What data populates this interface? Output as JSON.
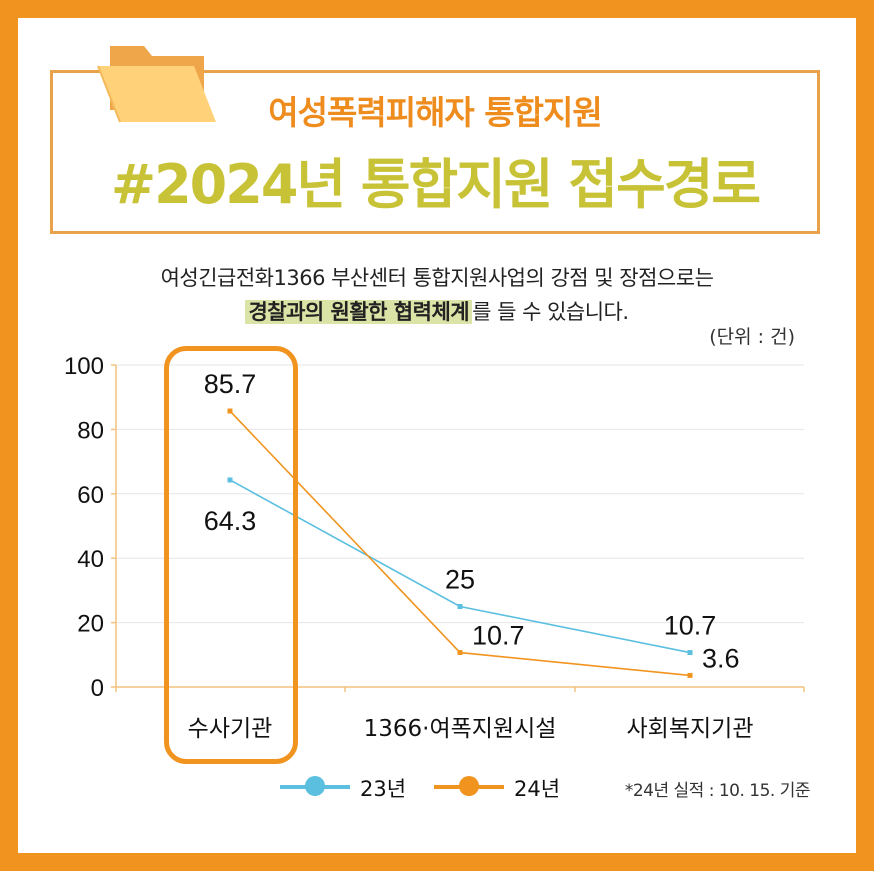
{
  "header": {
    "subtitle": "여성폭력피해자 통합지원",
    "title": "#2024년 통합지원 접수경로"
  },
  "description": {
    "line1": "여성긴급전화1366 부산센터 통합지원사업의 강점 및 장점으로는",
    "line2_highlight": "경찰과의 원활한 협력체계",
    "line2_rest": "를 들 수 있습니다."
  },
  "unit_label": "(단위 : 건)",
  "note": "*24년 실적 : 10. 15. 기준",
  "colors": {
    "frame": "#F0941F",
    "subtitle": "#EE8C1E",
    "title": "#C8C236",
    "series_23": "#5BC0E0",
    "series_24": "#F0941F",
    "highlight_bg": "#DCE3A6"
  },
  "icons": {
    "folder": "folder-icon"
  },
  "chart_data": {
    "type": "line",
    "categories": [
      "수사기관",
      "1366·여폭지원시설",
      "사회복지기관"
    ],
    "series": [
      {
        "name": "23년",
        "values": [
          64.3,
          25,
          10.7
        ],
        "color": "#5BC0E0"
      },
      {
        "name": "24년",
        "values": [
          85.7,
          10.7,
          3.6
        ],
        "color": "#F0941F"
      }
    ],
    "yticks": [
      "0",
      "20",
      "40",
      "60",
      "80",
      "100"
    ],
    "ylim": [
      0,
      100
    ],
    "grid": true,
    "legend": "bottom",
    "highlighted_category": "수사기관",
    "data_labels": [
      {
        "series": "24년",
        "category": "수사기관",
        "text": "85.7",
        "pos": "above"
      },
      {
        "series": "23년",
        "category": "수사기관",
        "text": "64.3",
        "pos": "below"
      },
      {
        "series": "23년",
        "category": "1366·여폭지원시설",
        "text": "25",
        "pos": "above"
      },
      {
        "series": "24년",
        "category": "1366·여폭지원시설",
        "text": "10.7",
        "pos": "above-right"
      },
      {
        "series": "23년",
        "category": "사회복지기관",
        "text": "10.7",
        "pos": "above"
      },
      {
        "series": "24년",
        "category": "사회복지기관",
        "text": "3.6",
        "pos": "above-right"
      }
    ]
  }
}
